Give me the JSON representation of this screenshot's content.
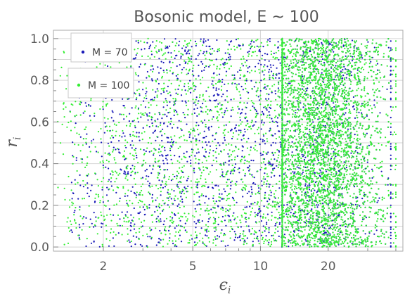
{
  "chart_data": {
    "type": "scatter",
    "title": "Bosonic model, E ~ 100",
    "xlabel": {
      "base": "ϵ",
      "sub": "i"
    },
    "ylabel": {
      "base": "r",
      "sub": "i"
    },
    "xscale": "log",
    "xlim": [
      1.2,
      43
    ],
    "ylim": [
      -0.02,
      1.04
    ],
    "xticks": [
      2,
      5,
      10,
      20
    ],
    "xtick_labels": [
      "2",
      "5",
      "10",
      "20"
    ],
    "yticks": [
      0.0,
      0.2,
      0.4,
      0.6,
      0.8,
      1.0
    ],
    "ytick_labels": [
      "0.0",
      "0.2",
      "0.4",
      "0.6",
      "0.8",
      "1.0"
    ],
    "grid": true,
    "legend_position": "top-left",
    "series": [
      {
        "name": "M = 70",
        "color": "#1a1ab8",
        "distribution": {
          "sparse_x_range": [
            1.4,
            12.5
          ],
          "dense_x_range": [
            12.5,
            38
          ],
          "y_range": [
            0.0,
            1.0
          ],
          "approx_points": 4200
        }
      },
      {
        "name": "M = 100",
        "color": "#33ee33",
        "distribution": {
          "sparse_x_range": [
            1.25,
            12.5
          ],
          "dense_x_range": [
            12.5,
            40
          ],
          "y_range": [
            0.0,
            1.0
          ],
          "approx_points": 5200
        }
      }
    ]
  }
}
